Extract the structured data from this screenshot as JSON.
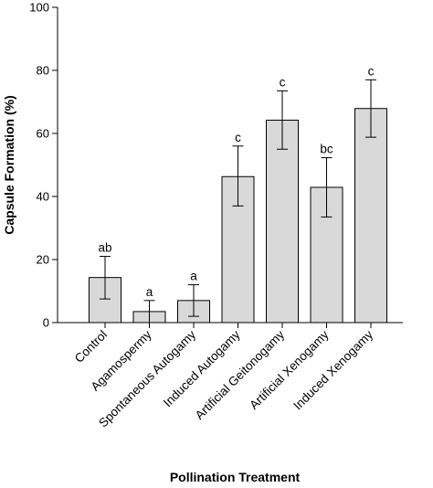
{
  "chart_data": {
    "type": "bar",
    "categories": [
      "Control",
      "Agamospermy",
      "Spontaneous Autogamy",
      "Induced Autogamy",
      "Artificial Geitonogamy",
      "Artificial Xenogamy",
      "Induced Xenogamy"
    ],
    "values": [
      14.3,
      3.5,
      7.0,
      46.3,
      64.2,
      42.9,
      67.9
    ],
    "error_upper": [
      21.0,
      7.0,
      12.0,
      56.0,
      73.5,
      52.3,
      77.0
    ],
    "error_lower": [
      7.5,
      0.0,
      2.0,
      37.0,
      55.0,
      33.5,
      58.8
    ],
    "significance_labels": [
      "ab",
      "a",
      "a",
      "c",
      "c",
      "bc",
      "c"
    ],
    "xlabel": "Pollination Treatment",
    "ylabel": "Capsule Formation (%)",
    "ylim": [
      0,
      100
    ],
    "yticks": [
      0,
      20,
      40,
      60,
      80,
      100
    ],
    "grid": false,
    "bar_color": "#d9d9d9",
    "edge_color": "#000000"
  }
}
